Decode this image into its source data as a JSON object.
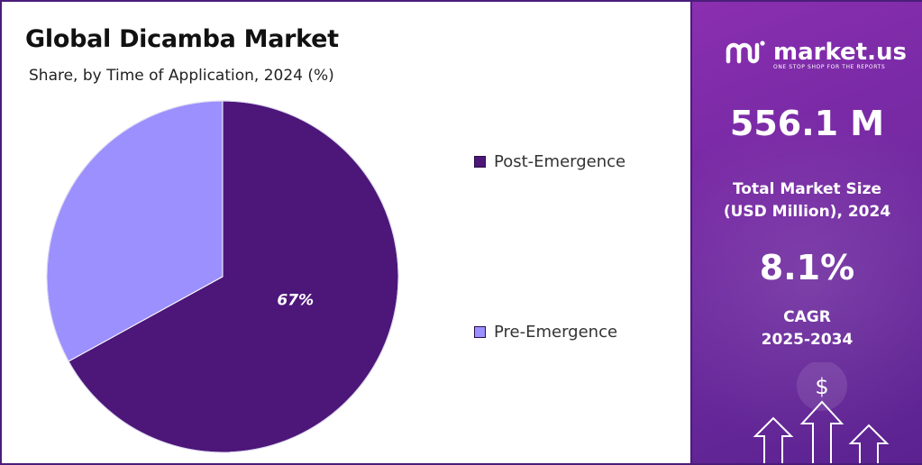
{
  "header": {
    "title": "Global Dicamba Market",
    "subtitle": "Share, by Time of Application, 2024 (%)"
  },
  "chart_data": {
    "type": "pie",
    "title": "Global Dicamba Market",
    "subtitle": "Share, by Time of Application, 2024 (%)",
    "categories": [
      "Post-Emergence",
      "Pre-Emergence"
    ],
    "values": [
      67,
      33
    ],
    "data_labels": [
      "67%",
      ""
    ],
    "colors": [
      "#4d1679",
      "#9b90fd"
    ],
    "legend_position": "right"
  },
  "sidebar": {
    "brand": "market.us",
    "tagline": "ONE STOP SHOP FOR THE REPORTS",
    "market_size_value": "556.1 M",
    "market_size_label_line1": "Total Market Size",
    "market_size_label_line2": "(USD Million), 2024",
    "cagr_value": "8.1%",
    "cagr_label_line1": "CAGR",
    "cagr_label_line2": "2025-2034",
    "decor_symbol": "$"
  }
}
